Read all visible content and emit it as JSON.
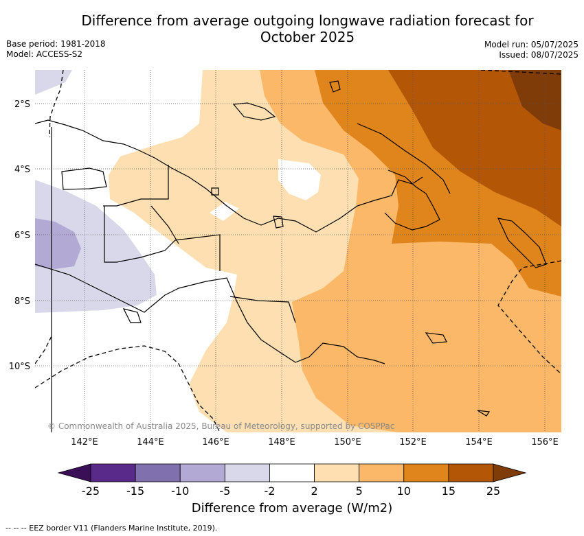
{
  "title_line1": "Difference from average outgoing longwave radiation forecast for",
  "title_line2": "October 2025",
  "meta_left": {
    "base_period": "Base period: 1981-2018",
    "model": "Model: ACCESS-S2"
  },
  "meta_right": {
    "model_run": "Model run: 05/07/2025",
    "issued": "Issued: 08/07/2025"
  },
  "lat_labels": [
    "2°S",
    "4°S",
    "6°S",
    "8°S",
    "10°S"
  ],
  "lon_labels": [
    "142°E",
    "144°E",
    "146°E",
    "148°E",
    "150°E",
    "152°E",
    "154°E",
    "156°E"
  ],
  "copyright": "© Commonwealth of Australia 2025, Bureau of Meteorology, supported by COSPPac",
  "colorbar": {
    "ticks": [
      "-25",
      "-15",
      "-10",
      "-5",
      "-2",
      "2",
      "5",
      "10",
      "15",
      "25"
    ],
    "colors": [
      "#3b0f57",
      "#5a2a8a",
      "#8070ad",
      "#b2aad4",
      "#d8d8ea",
      "#ffffff",
      "#fddfb2",
      "#fbb868",
      "#e0841c",
      "#b35706",
      "#7f3b08"
    ],
    "label": "Difference from average (W/m2)"
  },
  "footnote": "--  --  -- EEZ border V11 (Flanders Marine Institute, 2019)."
}
